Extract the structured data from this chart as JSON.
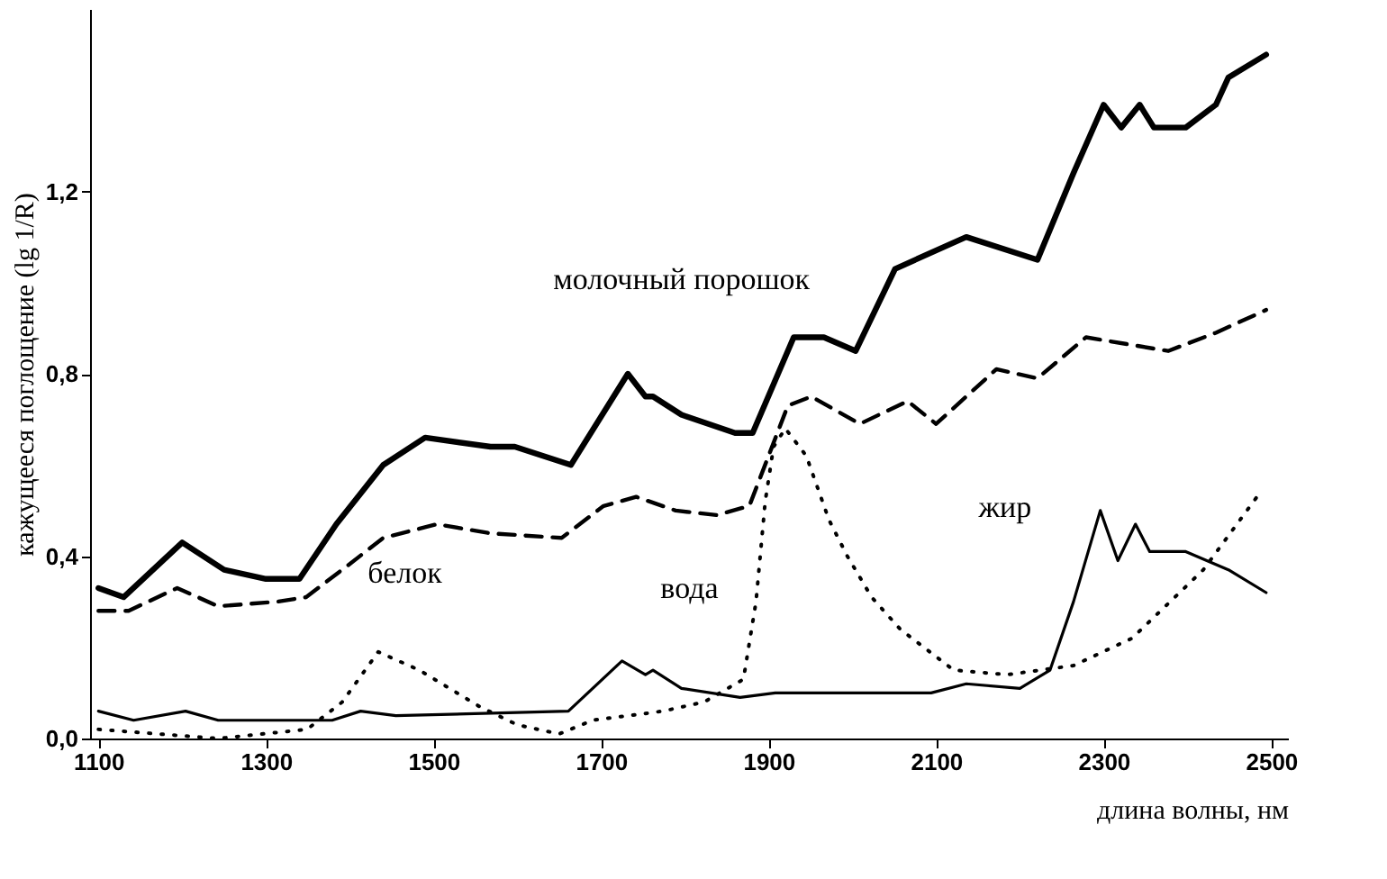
{
  "chart_data": {
    "type": "line",
    "xlabel": "длина волны, нм",
    "ylabel": "кажущееся поглощение (lg 1/R)",
    "xlim": [
      1090,
      2520
    ],
    "xticks": [
      1100,
      1300,
      1500,
      1700,
      1900,
      2100,
      2300,
      2500
    ],
    "ylim": [
      0,
      1.6
    ],
    "yticks": [
      {
        "value": 0,
        "label": "0,0"
      },
      {
        "value": 0.4,
        "label": "0,4"
      },
      {
        "value": 0.8,
        "label": "0,8"
      },
      {
        "value": 1.2,
        "label": "1,2"
      }
    ],
    "grid": false,
    "marker": "none",
    "series": [
      {
        "name": "молочный порошок",
        "color": "#000000",
        "line_style": "solid",
        "x": [
          1100,
          1130,
          1200,
          1250,
          1300,
          1340,
          1384,
          1440,
          1490,
          1568,
          1597,
          1664,
          1732,
          1753,
          1762,
          1796,
          1860,
          1881,
          1930,
          1966,
          2004,
          2051,
          2136,
          2221,
          2264,
          2300,
          2321,
          2343,
          2360,
          2398,
          2434,
          2449,
          2494
        ],
        "values": [
          0.33,
          0.31,
          0.43,
          0.37,
          0.35,
          0.35,
          0.47,
          0.6,
          0.66,
          0.64,
          0.64,
          0.6,
          0.8,
          0.75,
          0.75,
          0.71,
          0.67,
          0.67,
          0.88,
          0.88,
          0.85,
          1.03,
          1.1,
          1.05,
          1.24,
          1.39,
          1.34,
          1.39,
          1.34,
          1.34,
          1.39,
          1.45,
          1.5
        ]
      },
      {
        "name": "белок",
        "color": "#000000",
        "line_style": "dashed",
        "x": [
          1100,
          1136,
          1194,
          1243,
          1313,
          1348,
          1398,
          1440,
          1504,
          1568,
          1653,
          1703,
          1742,
          1789,
          1838,
          1877,
          1923,
          1951,
          2009,
          2066,
          2100,
          2172,
          2221,
          2279,
          2377,
          2434,
          2494
        ],
        "values": [
          0.28,
          0.28,
          0.33,
          0.29,
          0.3,
          0.31,
          0.38,
          0.44,
          0.47,
          0.45,
          0.44,
          0.51,
          0.53,
          0.5,
          0.49,
          0.51,
          0.73,
          0.75,
          0.69,
          0.74,
          0.69,
          0.81,
          0.79,
          0.88,
          0.85,
          0.89,
          0.94
        ]
      },
      {
        "name": "вода",
        "color": "#000000",
        "line_style": "dotted",
        "x": [
          1100,
          1243,
          1349,
          1391,
          1434,
          1483,
          1555,
          1600,
          1650,
          1690,
          1774,
          1823,
          1870,
          1885,
          1896,
          1906,
          1920,
          1945,
          1972,
          1994,
          2023,
          2057,
          2121,
          2185,
          2264,
          2334,
          2419,
          2483
        ],
        "values": [
          0.02,
          0.0,
          0.02,
          0.08,
          0.19,
          0.15,
          0.07,
          0.03,
          0.01,
          0.04,
          0.06,
          0.08,
          0.13,
          0.3,
          0.52,
          0.64,
          0.68,
          0.62,
          0.48,
          0.4,
          0.31,
          0.24,
          0.15,
          0.14,
          0.16,
          0.22,
          0.37,
          0.53
        ]
      },
      {
        "name": "жир",
        "color": "#000000",
        "line_style": "solid",
        "x": [
          1100,
          1142,
          1204,
          1243,
          1379,
          1413,
          1455,
          1661,
          1725,
          1753,
          1762,
          1796,
          1866,
          1908,
          2094,
          2136,
          2200,
          2236,
          2264,
          2296,
          2317,
          2338,
          2355,
          2398,
          2449,
          2494
        ],
        "values": [
          0.06,
          0.04,
          0.06,
          0.04,
          0.04,
          0.06,
          0.05,
          0.06,
          0.17,
          0.14,
          0.15,
          0.11,
          0.09,
          0.1,
          0.1,
          0.12,
          0.11,
          0.15,
          0.3,
          0.5,
          0.39,
          0.47,
          0.41,
          0.41,
          0.37,
          0.32
        ]
      }
    ]
  }
}
